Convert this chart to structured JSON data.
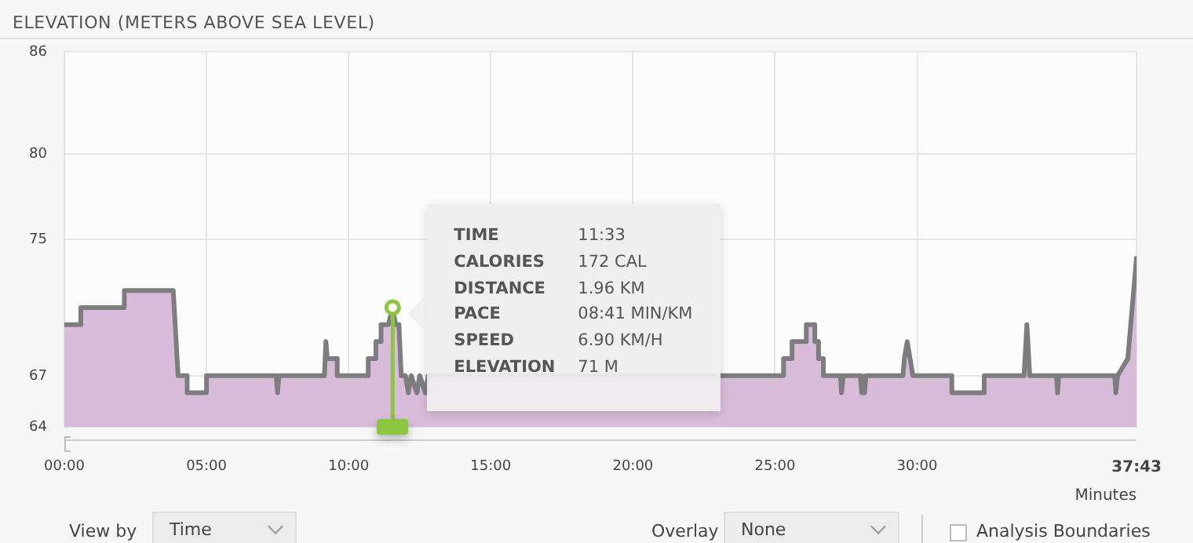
{
  "chart_data": {
    "type": "area",
    "title": "ELEVATION (METERS ABOVE SEA LEVEL)",
    "xlabel": "Minutes",
    "series": [
      {
        "color": "#d9bcd9",
        "x": [
          0,
          0.58,
          0.58,
          2.11,
          2.11,
          3.83,
          4.0,
          4.32,
          4.32,
          5.0,
          5.0,
          7.45,
          7.5,
          7.55,
          9.15,
          9.2,
          9.25,
          9.6,
          9.6,
          10.69,
          10.69,
          10.96,
          10.96,
          11.14,
          11.14,
          11.4,
          11.55,
          11.65,
          11.77,
          11.85,
          12.0,
          12.1,
          12.2,
          12.4,
          12.5,
          12.7,
          12.8,
          23.4,
          25.3,
          25.3,
          25.6,
          25.6,
          26.1,
          26.1,
          26.4,
          26.4,
          26.53,
          26.53,
          26.7,
          26.7,
          27.3,
          27.34,
          27.4,
          28.0,
          28.05,
          28.15,
          28.2,
          29.5,
          29.55,
          29.65,
          29.75,
          29.85,
          31.22,
          31.22,
          32.36,
          32.36,
          33.76,
          33.86,
          33.96,
          34.9,
          34.94,
          34.98,
          36.95,
          36.99,
          37.05,
          37.41,
          37.72
        ],
        "values": [
          70,
          70,
          71,
          71,
          72,
          72,
          67,
          67,
          66,
          66,
          67,
          67,
          66,
          67,
          67,
          69,
          68,
          68,
          67,
          67,
          68,
          68,
          69,
          69,
          70,
          70,
          71,
          70,
          70,
          67,
          67,
          66,
          67,
          66,
          67,
          66,
          67,
          67,
          67,
          68,
          68,
          69,
          69,
          70,
          70,
          69,
          69,
          68,
          68,
          67,
          67,
          66,
          67,
          67,
          66,
          66,
          67,
          67,
          68,
          69,
          68,
          67,
          67,
          66,
          66,
          67,
          67,
          70,
          67,
          67,
          66,
          67,
          67,
          66,
          67,
          68,
          74
        ]
      }
    ],
    "xlim": [
      0,
      37.72
    ],
    "ylim": [
      64,
      86
    ],
    "xticks": [
      {
        "value": 0,
        "label": "00:00"
      },
      {
        "value": 5,
        "label": "05:00"
      },
      {
        "value": 10,
        "label": "10:00"
      },
      {
        "value": 15,
        "label": "15:00"
      },
      {
        "value": 20,
        "label": "20:00"
      },
      {
        "value": 25,
        "label": "25:00"
      },
      {
        "value": 30,
        "label": "30:00"
      },
      {
        "value": 37.72,
        "label": "37:43"
      }
    ],
    "yticks": [
      64,
      67,
      75,
      80,
      86
    ],
    "grid": true,
    "legend": false,
    "ref_lines": [
      {
        "axis": "x",
        "value": 11.55,
        "color": "#8cc63f"
      }
    ],
    "annotations": [
      "TIME",
      "11:33",
      "CALORIES",
      "172 CAL",
      "DISTANCE",
      "1.96 KM",
      "PACE",
      "08:41 MIN/KM",
      "SPEED",
      "6.90 KM/H",
      "ELEVATION",
      "71 M",
      "View by",
      "Time",
      "Overlay",
      "None",
      "Analysis Boundaries"
    ]
  }
}
